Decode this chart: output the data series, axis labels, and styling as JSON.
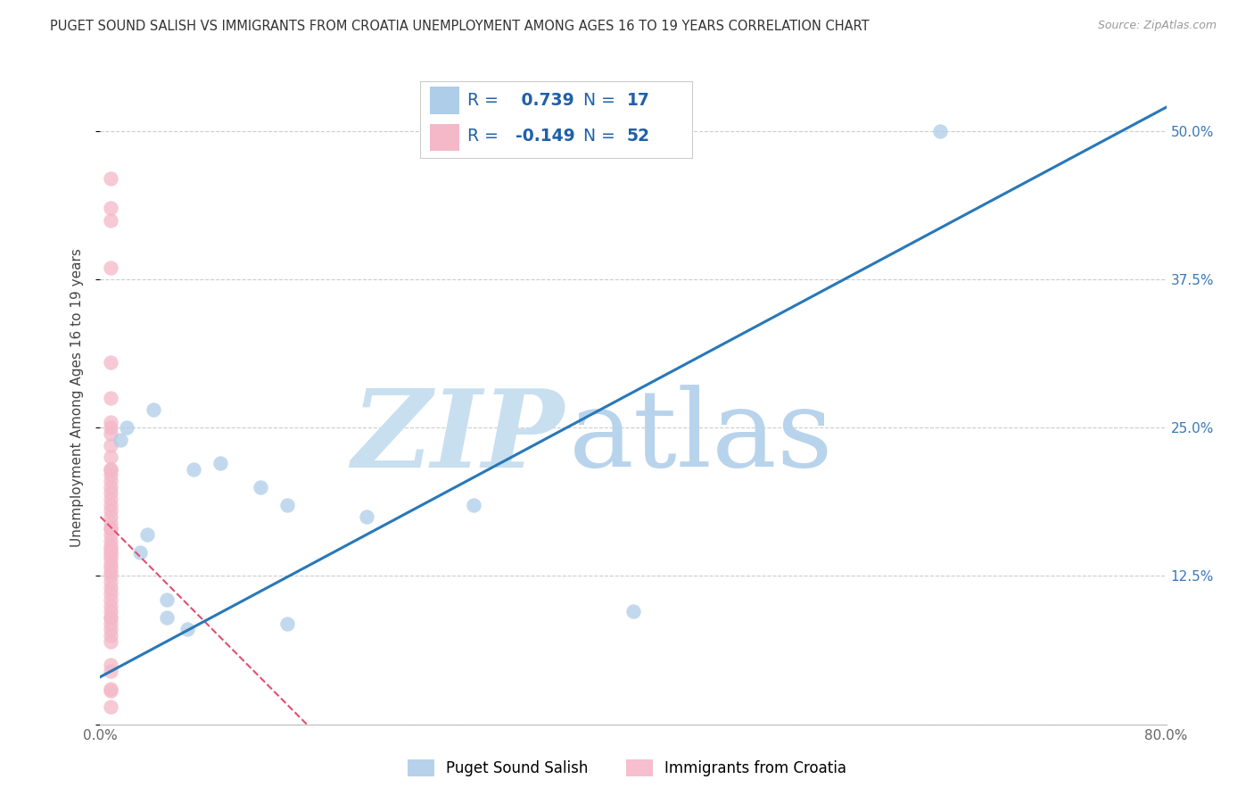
{
  "title": "PUGET SOUND SALISH VS IMMIGRANTS FROM CROATIA UNEMPLOYMENT AMONG AGES 16 TO 19 YEARS CORRELATION CHART",
  "source": "Source: ZipAtlas.com",
  "ylabel": "Unemployment Among Ages 16 to 19 years",
  "xlim": [
    0.0,
    0.8
  ],
  "ylim": [
    0.0,
    0.55
  ],
  "yticks": [
    0.0,
    0.125,
    0.25,
    0.375,
    0.5
  ],
  "ytick_labels_right": [
    "",
    "12.5%",
    "25.0%",
    "37.5%",
    "50.0%"
  ],
  "xticks": [
    0.0,
    0.1,
    0.2,
    0.3,
    0.4,
    0.5,
    0.6,
    0.7,
    0.8
  ],
  "xtick_labels": [
    "0.0%",
    "",
    "",
    "",
    "",
    "",
    "",
    "",
    "80.0%"
  ],
  "watermark_zip": "ZIP",
  "watermark_atlas": "atlas",
  "blue_R": "0.739",
  "blue_N": "17",
  "pink_R": "-0.149",
  "pink_N": "52",
  "blue_scatter_x": [
    0.02,
    0.04,
    0.07,
    0.065,
    0.12,
    0.14,
    0.015,
    0.03,
    0.035,
    0.05,
    0.09,
    0.2,
    0.28,
    0.05,
    0.14,
    0.63,
    0.4
  ],
  "blue_scatter_y": [
    0.25,
    0.265,
    0.215,
    0.08,
    0.2,
    0.185,
    0.24,
    0.145,
    0.16,
    0.105,
    0.22,
    0.175,
    0.185,
    0.09,
    0.085,
    0.5,
    0.095
  ],
  "pink_scatter_x": [
    0.008,
    0.008,
    0.008,
    0.008,
    0.008,
    0.008,
    0.008,
    0.008,
    0.008,
    0.008,
    0.008,
    0.008,
    0.008,
    0.008,
    0.008,
    0.008,
    0.008,
    0.008,
    0.008,
    0.008,
    0.008,
    0.008,
    0.008,
    0.008,
    0.008,
    0.008,
    0.008,
    0.008,
    0.008,
    0.008,
    0.008,
    0.008,
    0.008,
    0.008,
    0.008,
    0.008,
    0.008,
    0.008,
    0.008,
    0.008,
    0.008,
    0.008,
    0.008,
    0.008,
    0.008,
    0.008,
    0.008,
    0.008,
    0.008,
    0.008,
    0.008,
    0.008
  ],
  "pink_scatter_y": [
    0.46,
    0.435,
    0.425,
    0.385,
    0.305,
    0.275,
    0.255,
    0.25,
    0.245,
    0.235,
    0.225,
    0.215,
    0.215,
    0.21,
    0.205,
    0.2,
    0.195,
    0.19,
    0.185,
    0.18,
    0.175,
    0.17,
    0.165,
    0.165,
    0.16,
    0.155,
    0.15,
    0.148,
    0.145,
    0.143,
    0.14,
    0.135,
    0.132,
    0.128,
    0.125,
    0.12,
    0.115,
    0.11,
    0.105,
    0.1,
    0.095,
    0.09,
    0.085,
    0.08,
    0.075,
    0.07,
    0.05,
    0.015,
    0.09,
    0.045,
    0.03,
    0.028
  ],
  "blue_line_x": [
    0.0,
    0.8
  ],
  "blue_line_y": [
    0.04,
    0.52
  ],
  "pink_line_x": [
    0.0,
    0.155
  ],
  "pink_line_y": [
    0.175,
    0.0
  ],
  "blue_scatter_color": "#aecde8",
  "pink_scatter_color": "#f4b8c8",
  "blue_line_color": "#2878b8",
  "pink_line_color": "#e05070",
  "legend_text_color": "#2060a8",
  "bg_color": "#ffffff",
  "grid_color": "#cccccc",
  "title_color": "#333333",
  "right_tick_color": "#3878b8",
  "watermark_zip_color": "#c8dff0",
  "watermark_atlas_color": "#b8d4ec"
}
